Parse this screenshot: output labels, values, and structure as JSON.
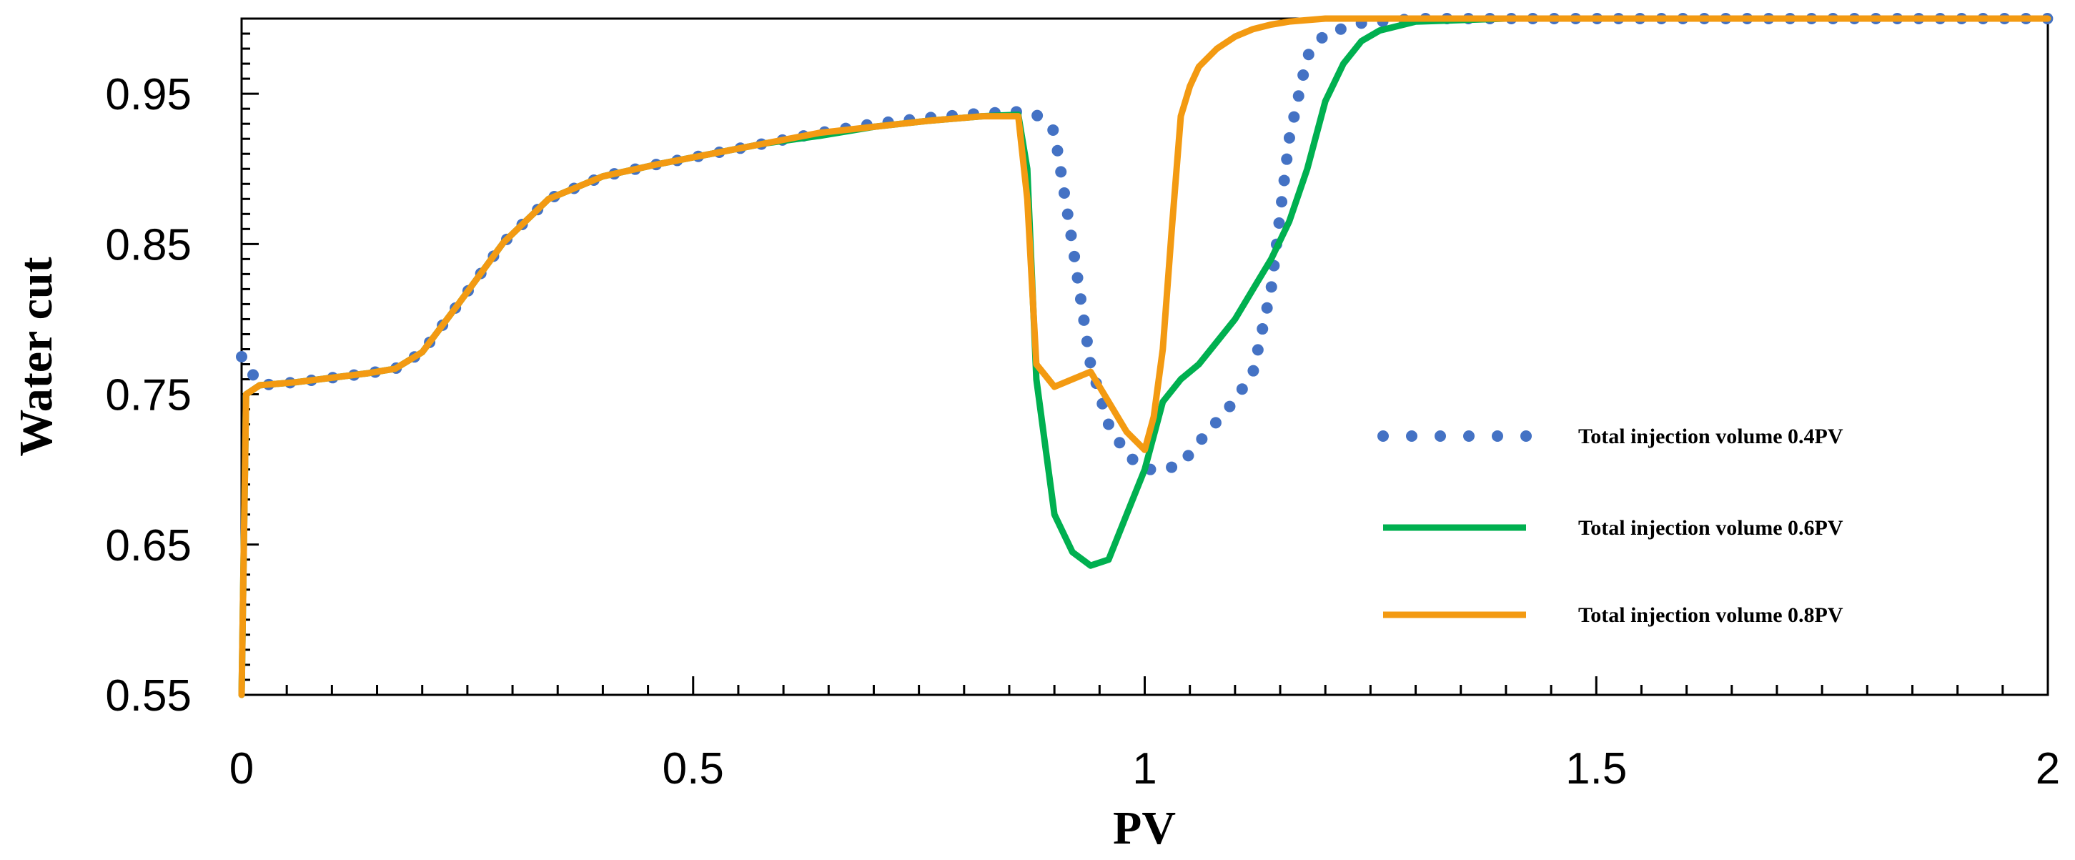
{
  "chart_data": {
    "type": "line",
    "title": "",
    "xlabel": "PV",
    "ylabel": "Water cut",
    "xlim": [
      0,
      2
    ],
    "ylim": [
      0.55,
      1.0
    ],
    "xticks": [
      0,
      0.5,
      1,
      1.5,
      2
    ],
    "xtick_labels": [
      "0",
      "0.5",
      "1",
      "1.5",
      "2"
    ],
    "yticks": [
      0.55,
      0.65,
      0.75,
      0.85,
      0.95
    ],
    "ytick_labels": [
      "0.55",
      "0.65",
      "0.75",
      "0.85",
      "0.95"
    ],
    "grid": false,
    "legend_position": "right-middle",
    "series": [
      {
        "name": "Total injection volume 0.4PV",
        "color": "#4472C4",
        "style": "dotted",
        "x": [
          0,
          0.02,
          0.06,
          0.1,
          0.14,
          0.17,
          0.2,
          0.24,
          0.29,
          0.34,
          0.4,
          0.46,
          0.52,
          0.58,
          0.64,
          0.7,
          0.76,
          0.82,
          0.86,
          0.88,
          0.9,
          0.92,
          0.94,
          0.96,
          0.98,
          1.0,
          1.02,
          1.04,
          1.06,
          1.08,
          1.1,
          1.12,
          1.14,
          1.16,
          1.18,
          1.2,
          1.24,
          1.3,
          1.4,
          1.5,
          1.6,
          1.7,
          1.8,
          1.9,
          2.0
        ],
        "y": [
          0.775,
          0.756,
          0.758,
          0.761,
          0.764,
          0.767,
          0.778,
          0.81,
          0.851,
          0.88,
          0.895,
          0.903,
          0.91,
          0.917,
          0.924,
          0.93,
          0.934,
          0.937,
          0.938,
          0.936,
          0.925,
          0.85,
          0.77,
          0.73,
          0.71,
          0.7,
          0.7,
          0.703,
          0.718,
          0.732,
          0.746,
          0.765,
          0.82,
          0.92,
          0.975,
          0.99,
          0.997,
          1.0,
          1.0,
          1.0,
          1.0,
          1.0,
          1.0,
          1.0,
          1.0
        ]
      },
      {
        "name": "Total injection volume 0.6PV",
        "color": "#00B050",
        "style": "solid",
        "x": [
          0,
          0.005,
          0.02,
          0.06,
          0.1,
          0.14,
          0.17,
          0.2,
          0.24,
          0.29,
          0.34,
          0.4,
          0.46,
          0.52,
          0.58,
          0.64,
          0.7,
          0.76,
          0.82,
          0.86,
          0.87,
          0.88,
          0.9,
          0.92,
          0.94,
          0.96,
          0.98,
          1.0,
          1.02,
          1.04,
          1.06,
          1.08,
          1.1,
          1.12,
          1.14,
          1.16,
          1.18,
          1.2,
          1.22,
          1.24,
          1.26,
          1.3,
          1.4,
          1.5,
          1.6,
          1.7,
          1.8,
          1.9,
          2.0
        ],
        "y": [
          0.55,
          0.75,
          0.756,
          0.758,
          0.761,
          0.764,
          0.767,
          0.778,
          0.81,
          0.851,
          0.88,
          0.895,
          0.903,
          0.91,
          0.917,
          0.922,
          0.928,
          0.932,
          0.935,
          0.936,
          0.9,
          0.76,
          0.67,
          0.645,
          0.636,
          0.64,
          0.67,
          0.7,
          0.745,
          0.76,
          0.77,
          0.785,
          0.8,
          0.82,
          0.84,
          0.865,
          0.9,
          0.945,
          0.97,
          0.985,
          0.992,
          0.998,
          1.0,
          1.0,
          1.0,
          1.0,
          1.0,
          1.0,
          1.0
        ]
      },
      {
        "name": "Total injection volume 0.8PV",
        "color": "#F39A12",
        "style": "solid",
        "x": [
          0,
          0.005,
          0.02,
          0.06,
          0.1,
          0.14,
          0.17,
          0.2,
          0.24,
          0.29,
          0.34,
          0.4,
          0.46,
          0.52,
          0.58,
          0.64,
          0.7,
          0.76,
          0.82,
          0.86,
          0.87,
          0.88,
          0.9,
          0.92,
          0.94,
          0.96,
          0.98,
          1.0,
          1.01,
          1.02,
          1.03,
          1.04,
          1.05,
          1.06,
          1.08,
          1.1,
          1.12,
          1.14,
          1.16,
          1.2,
          1.3,
          1.4,
          1.5,
          1.6,
          1.7,
          1.8,
          1.9,
          2.0
        ],
        "y": [
          0.55,
          0.75,
          0.756,
          0.758,
          0.761,
          0.764,
          0.767,
          0.778,
          0.81,
          0.851,
          0.88,
          0.895,
          0.903,
          0.91,
          0.917,
          0.924,
          0.928,
          0.932,
          0.935,
          0.935,
          0.88,
          0.77,
          0.755,
          0.76,
          0.765,
          0.745,
          0.725,
          0.713,
          0.735,
          0.78,
          0.86,
          0.935,
          0.955,
          0.968,
          0.98,
          0.988,
          0.993,
          0.996,
          0.998,
          1.0,
          1.0,
          1.0,
          1.0,
          1.0,
          1.0,
          1.0,
          1.0,
          1.0
        ]
      }
    ]
  }
}
